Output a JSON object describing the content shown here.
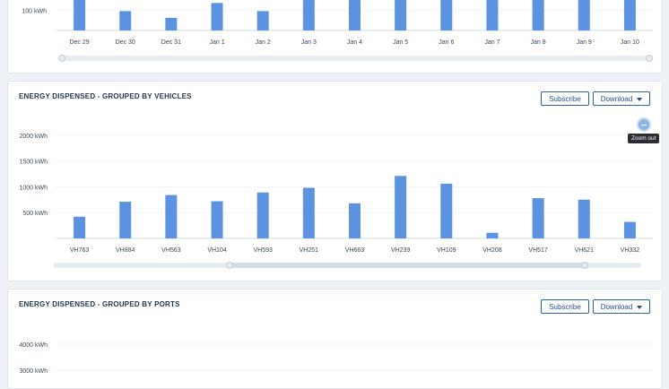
{
  "date_card": {
    "chart_data": {
      "type": "bar",
      "categories": [
        "Dec 29",
        "Dec 30",
        "Dec 31",
        "Jan 1",
        "Jan 2",
        "Jan 3",
        "Jan 4",
        "Jan 5",
        "Jan 6",
        "Jan 7",
        "Jan 8",
        "Jan 9",
        "Jan 10"
      ],
      "values": [
        160,
        95,
        62,
        135,
        95,
        210,
        210,
        210,
        210,
        210,
        210,
        210,
        210
      ],
      "ytick_labels": [
        "100 kWh"
      ],
      "ytick_values": [
        100
      ],
      "ylim": [
        0,
        220
      ],
      "color": "#5b93e0"
    }
  },
  "vehicles_card": {
    "title": "ENERGY DISPENSED - GROUPED BY VEHICLES",
    "subscribe_label": "Subscribe",
    "download_label": "Download",
    "zoom_tooltip": "Zoom out",
    "chart_data": {
      "type": "bar",
      "categories": [
        "VH763",
        "VH884",
        "VH563",
        "VH104",
        "VH593",
        "VH251",
        "VH663",
        "VH239",
        "VH109",
        "VH208",
        "VH517",
        "VH621",
        "VH332"
      ],
      "values": [
        420,
        710,
        840,
        720,
        890,
        980,
        680,
        1210,
        1060,
        110,
        780,
        750,
        320
      ],
      "ytick_labels": [
        "500 kWh",
        "1000 kWh",
        "1500 kWh",
        "2000 kWh"
      ],
      "ytick_values": [
        500,
        1000,
        1500,
        2000
      ],
      "ylim": [
        0,
        2100
      ],
      "color": "#5b93e0"
    }
  },
  "ports_card": {
    "title": "ENERGY DISPENSED - GROUPED BY PORTS",
    "subscribe_label": "Subscribe",
    "download_label": "Download",
    "chart_data": {
      "type": "bar",
      "ytick_labels": [
        "4000 kWh",
        "3000 kWh"
      ],
      "ytick_values": [
        4000,
        3000
      ]
    }
  }
}
